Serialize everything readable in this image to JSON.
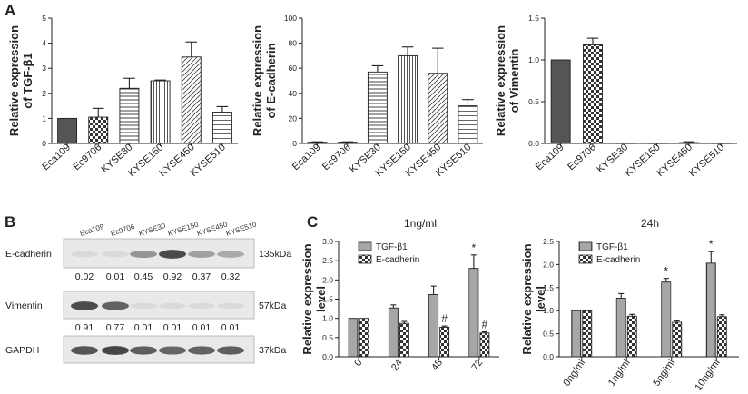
{
  "figure": {
    "panels": {
      "A": "A",
      "B": "B",
      "C": "C"
    },
    "western_blot": {
      "lanes": [
        "Eca109",
        "Ec9706",
        "KYSE30",
        "KYSE150",
        "KYSE450",
        "KYSE510"
      ],
      "rows": [
        {
          "protein": "E-cadherin",
          "kda": "135kDa",
          "quant": [
            "0.02",
            "0.01",
            "0.45",
            "0.92",
            "0.37",
            "0.32"
          ]
        },
        {
          "protein": "Vimentin",
          "kda": "57kDa",
          "quant": [
            "0.91",
            "0.77",
            "0.01",
            "0.01",
            "0.01",
            "0.01"
          ]
        },
        {
          "protein": "GAPDH",
          "kda": "37kDa",
          "quant": []
        }
      ]
    }
  },
  "colors": {
    "bar_fill": "#ffffff",
    "bar_stroke": "#222222",
    "dark_fill": "#555555"
  },
  "chart_data": [
    {
      "type": "bar",
      "panel": "A",
      "ylabel": "Relative expression of TGF-β1",
      "categories": [
        "Eca109",
        "Ec9706",
        "KYSE30",
        "KYSE150",
        "KYSE450",
        "KYSE510"
      ],
      "values": [
        1.0,
        1.05,
        2.2,
        2.5,
        3.45,
        1.25
      ],
      "errors": [
        0,
        0.35,
        0.4,
        0.03,
        0.6,
        0.22
      ],
      "patterns": [
        "dark",
        "checker",
        "hlines",
        "vlines",
        "diag",
        "hlines2"
      ],
      "ylim": [
        0,
        5
      ],
      "yticks": [
        0,
        1,
        2,
        3,
        4,
        5
      ]
    },
    {
      "type": "bar",
      "panel": "A",
      "ylabel": "Relative expression of E-cadherin",
      "categories": [
        "Eca109",
        "Ec9706",
        "KYSE30",
        "KYSE150",
        "KYSE450",
        "KYSE510"
      ],
      "values": [
        1,
        1,
        57,
        70,
        56,
        30
      ],
      "errors": [
        0.3,
        0.3,
        5,
        7,
        20,
        5
      ],
      "patterns": [
        "dark",
        "checker",
        "hlines",
        "vlines",
        "diag",
        "hlines2"
      ],
      "ylim": [
        0,
        100
      ],
      "yticks": [
        0,
        20,
        40,
        60,
        80,
        100
      ]
    },
    {
      "type": "bar",
      "panel": "A",
      "ylabel": "Relative expression of Vimentin",
      "categories": [
        "Eca109",
        "Ec9706",
        "KYSE30",
        "KYSE150",
        "KYSE450",
        "KYSE510"
      ],
      "values": [
        1.0,
        1.18,
        0.005,
        0.005,
        0.01,
        0.005
      ],
      "errors": [
        0,
        0.08,
        0,
        0,
        0.01,
        0
      ],
      "patterns": [
        "dark",
        "checker",
        "hlines",
        "vlines",
        "diag",
        "hlines2"
      ],
      "ylim": [
        0,
        1.5
      ],
      "yticks": [
        0.0,
        0.5,
        1.0,
        1.5
      ]
    },
    {
      "type": "bar",
      "panel": "C",
      "title": "1ng/ml",
      "ylabel": "Relative expression level",
      "categories": [
        "0",
        "24",
        "48",
        "72"
      ],
      "series": [
        {
          "name": "TGF-β1",
          "values": [
            1.0,
            1.27,
            1.62,
            2.3
          ],
          "errors": [
            0,
            0.08,
            0.22,
            0.35
          ],
          "marks": [
            "",
            "",
            "",
            "*"
          ]
        },
        {
          "name": "E-cadherin",
          "values": [
            1.0,
            0.87,
            0.77,
            0.62
          ],
          "errors": [
            0,
            0.05,
            0.03,
            0.03
          ],
          "marks": [
            "",
            "",
            "#",
            "#"
          ]
        }
      ],
      "ylim": [
        0,
        3.0
      ],
      "yticks": [
        0.0,
        0.5,
        1.0,
        1.5,
        2.0,
        2.5,
        3.0
      ],
      "legend": "top-left"
    },
    {
      "type": "bar",
      "panel": "C",
      "title": "24h",
      "ylabel": "Relative expression level",
      "categories": [
        "0ng/ml",
        "1ng/ml",
        "5ng/ml",
        "10ng/ml"
      ],
      "series": [
        {
          "name": "TGF-β1",
          "values": [
            1.0,
            1.27,
            1.62,
            2.03
          ],
          "errors": [
            0,
            0.1,
            0.08,
            0.25
          ],
          "marks": [
            "",
            "",
            "*",
            "*"
          ]
        },
        {
          "name": "E-cadherin",
          "values": [
            1.0,
            0.88,
            0.75,
            0.87
          ],
          "errors": [
            0,
            0.04,
            0.03,
            0.04
          ],
          "marks": [
            "",
            "",
            "",
            ""
          ]
        }
      ],
      "ylim": [
        0,
        2.5
      ],
      "yticks": [
        0.0,
        0.5,
        1.0,
        1.5,
        2.0,
        2.5
      ],
      "legend": "top-left"
    }
  ]
}
